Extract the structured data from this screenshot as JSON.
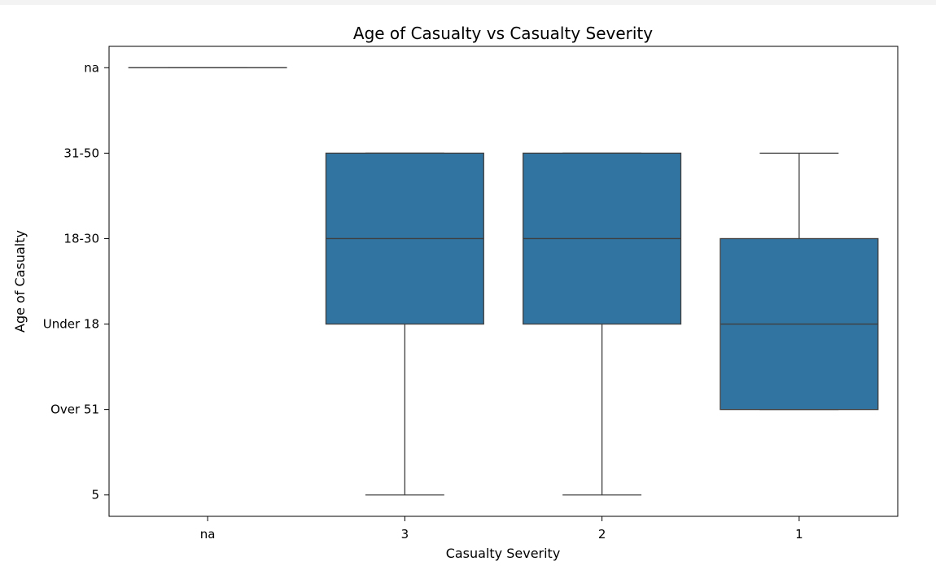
{
  "chart_data": {
    "type": "box",
    "title": "Age of Casualty vs Casualty Severity",
    "xlabel": "Casualty Severity",
    "ylabel": "Age of Casualty",
    "categories": [
      "na",
      "3",
      "2",
      "1"
    ],
    "y_categories": [
      "5",
      "Over 51",
      "Under 18",
      "18-30",
      "31-50",
      "na"
    ],
    "boxes": [
      {
        "category": "na",
        "whislo": "na",
        "q1": "na",
        "med": "na",
        "q3": "na",
        "whishi": "na"
      },
      {
        "category": "3",
        "whislo": "5",
        "q1": "Under 18",
        "med": "18-30",
        "q3": "31-50",
        "whishi": "31-50"
      },
      {
        "category": "2",
        "whislo": "5",
        "q1": "Under 18",
        "med": "18-30",
        "q3": "31-50",
        "whishi": "31-50"
      },
      {
        "category": "1",
        "whislo": "Over 51",
        "q1": "Over 51",
        "med": "Under 18",
        "q3": "18-30",
        "whishi": "31-50"
      }
    ],
    "box_color": "#3274a1",
    "line_color": "#3f3f3f",
    "grid": false
  }
}
